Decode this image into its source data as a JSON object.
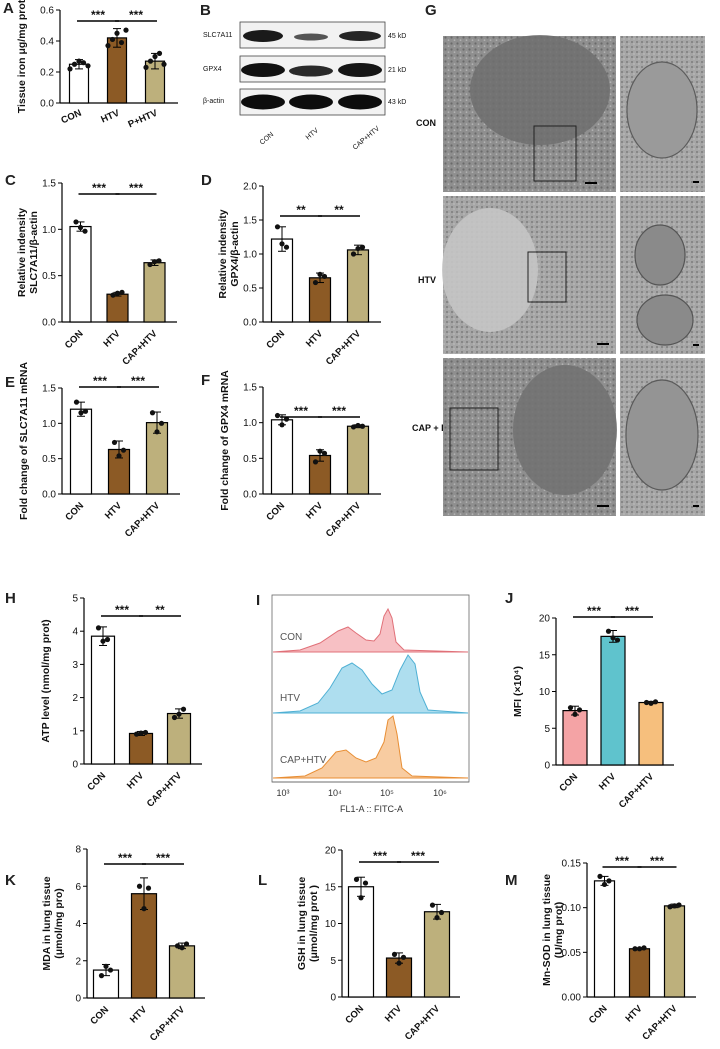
{
  "colors": {
    "con": "#ffffff",
    "htv": "#8c5a25",
    "cap_htv": "#bdb07c",
    "pink": "#f4a3a5",
    "teal": "#5fc3cd",
    "orange": "#f6bf7d",
    "flow_pink": "#f08d93",
    "flow_blue": "#6cc3e2",
    "flow_orange": "#f3a253"
  },
  "chart_data": [
    {
      "panel": "A",
      "type": "bar",
      "categories": [
        "CON",
        "HTV",
        "P+HTV"
      ],
      "values": [
        0.25,
        0.42,
        0.27
      ],
      "errors": [
        0.03,
        0.06,
        0.05
      ],
      "points": [
        [
          0.22,
          0.25,
          0.27,
          0.26,
          0.24
        ],
        [
          0.37,
          0.41,
          0.45,
          0.39,
          0.47
        ],
        [
          0.23,
          0.27,
          0.3,
          0.32,
          0.25
        ]
      ],
      "ylabel": "Tissue iron μg/mg prot",
      "ylim": [
        0,
        0.6
      ],
      "yticks": [
        "0.0",
        "0.2",
        "0.4",
        "0.6"
      ],
      "significance": [
        "***",
        "***"
      ]
    },
    {
      "panel": "C",
      "type": "bar",
      "categories": [
        "CON",
        "HTV",
        "CAP+HTV"
      ],
      "values": [
        1.03,
        0.3,
        0.64
      ],
      "errors": [
        0.05,
        0.02,
        0.03
      ],
      "points": [
        [
          1.08,
          1.02,
          0.98
        ],
        [
          0.29,
          0.31,
          0.32
        ],
        [
          0.62,
          0.65,
          0.66
        ]
      ],
      "ylabel": "Relative indensity SLC7A11/β-actin",
      "ylim": [
        0,
        1.5
      ],
      "yticks": [
        "0.0",
        "0.5",
        "1.0",
        "1.5"
      ],
      "significance": [
        "***",
        "***"
      ]
    },
    {
      "panel": "D",
      "type": "bar",
      "categories": [
        "CON",
        "HTV",
        "CAP+HTV"
      ],
      "values": [
        1.22,
        0.65,
        1.06
      ],
      "errors": [
        0.18,
        0.07,
        0.07
      ],
      "points": [
        [
          1.4,
          1.15,
          1.1
        ],
        [
          0.58,
          0.7,
          0.67
        ],
        [
          1.0,
          1.08,
          1.1
        ]
      ],
      "ylabel": "Relative indensity GPX4/β-actin",
      "ylim": [
        0,
        2.0
      ],
      "yticks": [
        "0.0",
        "0.5",
        "1.0",
        "1.5",
        "2.0"
      ],
      "significance": [
        "**",
        "**"
      ]
    },
    {
      "panel": "E",
      "type": "bar",
      "categories": [
        "CON",
        "HTV",
        "CAP+HTV"
      ],
      "values": [
        1.2,
        0.63,
        1.01
      ],
      "errors": [
        0.1,
        0.12,
        0.15
      ],
      "points": [
        [
          1.3,
          1.15,
          1.17
        ],
        [
          0.73,
          0.54,
          0.62
        ],
        [
          1.15,
          0.88,
          1.0
        ]
      ],
      "ylabel": "Fold change of SLC7A11 mRNA",
      "ylim": [
        0,
        1.5
      ],
      "yticks": [
        "0.0",
        "0.5",
        "1.0",
        "1.5"
      ],
      "significance": [
        "***",
        "***"
      ]
    },
    {
      "panel": "F",
      "type": "bar",
      "categories": [
        "CON",
        "HTV",
        "CAP+HTV"
      ],
      "values": [
        1.04,
        0.54,
        0.95
      ],
      "errors": [
        0.07,
        0.08,
        0.02
      ],
      "points": [
        [
          1.1,
          0.97,
          1.05
        ],
        [
          0.45,
          0.6,
          0.57
        ],
        [
          0.94,
          0.96,
          0.95
        ]
      ],
      "ylabel": "Fold change of GPX4 mRNA",
      "ylim": [
        0,
        1.5
      ],
      "yticks": [
        "0.0",
        "0.5",
        "1.0",
        "1.5"
      ],
      "significance": [
        "***",
        "***"
      ]
    },
    {
      "panel": "H",
      "type": "bar",
      "categories": [
        "CON",
        "HTV",
        "CAP+HTV"
      ],
      "values": [
        3.85,
        0.92,
        1.52
      ],
      "errors": [
        0.28,
        0.06,
        0.14
      ],
      "points": [
        [
          4.1,
          3.7,
          3.75
        ],
        [
          0.9,
          0.93,
          0.95
        ],
        [
          1.4,
          1.5,
          1.65
        ]
      ],
      "ylabel": "ATP level (nmol/mg prot)",
      "ylim": [
        0,
        5
      ],
      "yticks": [
        "0",
        "1",
        "2",
        "3",
        "4",
        "5"
      ],
      "significance": [
        "***",
        "**"
      ]
    },
    {
      "panel": "J",
      "type": "bar",
      "categories": [
        "CON",
        "HTV",
        "CAP+HTV"
      ],
      "values": [
        7.4,
        17.5,
        8.5
      ],
      "errors": [
        0.6,
        0.8,
        0.15
      ],
      "points": [
        [
          7.8,
          6.9,
          7.5
        ],
        [
          18.2,
          17.3,
          17.0
        ],
        [
          8.5,
          8.4,
          8.6
        ]
      ],
      "ylabel": "MFI (×10⁴)",
      "ylim": [
        0,
        20
      ],
      "yticks": [
        "0",
        "5",
        "10",
        "15",
        "20"
      ],
      "significance": [
        "***",
        "***"
      ]
    },
    {
      "panel": "K",
      "type": "bar",
      "categories": [
        "CON",
        "HTV",
        "CAP+HTV"
      ],
      "values": [
        1.5,
        5.6,
        2.8
      ],
      "errors": [
        0.3,
        0.85,
        0.15
      ],
      "points": [
        [
          1.2,
          1.7,
          1.5
        ],
        [
          6.0,
          4.8,
          5.9
        ],
        [
          2.8,
          2.7,
          2.9
        ]
      ],
      "ylabel": "MDA in lung tissue (μmol/mg pro)",
      "ylim": [
        0,
        8
      ],
      "yticks": [
        "0",
        "2",
        "4",
        "6",
        "8"
      ],
      "significance": [
        "***",
        "***"
      ]
    },
    {
      "panel": "L",
      "type": "bar",
      "categories": [
        "CON",
        "HTV",
        "CAP+HTV"
      ],
      "values": [
        15.0,
        5.3,
        11.6
      ],
      "errors": [
        1.3,
        0.7,
        1.0
      ],
      "points": [
        [
          16.0,
          13.5,
          15.5
        ],
        [
          5.8,
          4.6,
          5.4
        ],
        [
          12.5,
          10.8,
          11.5
        ]
      ],
      "ylabel": "GSH in lung tissue (μmol/mg prot )",
      "ylim": [
        0,
        20
      ],
      "yticks": [
        "0",
        "5",
        "10",
        "15",
        "20"
      ],
      "significance": [
        "***",
        "***"
      ]
    },
    {
      "panel": "M",
      "type": "bar",
      "categories": [
        "CON",
        "HTV",
        "CAP+HTV"
      ],
      "values": [
        0.13,
        0.054,
        0.102
      ],
      "errors": [
        0.005,
        0.001,
        0.002
      ],
      "points": [
        [
          0.135,
          0.126,
          0.13
        ],
        [
          0.054,
          0.054,
          0.055
        ],
        [
          0.101,
          0.102,
          0.103
        ]
      ],
      "ylabel": "Mn-SOD in lung tissue (U/mg prot)",
      "ylim": [
        0,
        0.15
      ],
      "yticks": [
        "0.00",
        "0.05",
        "0.10",
        "0.15"
      ],
      "significance": [
        "***",
        "***"
      ]
    }
  ],
  "panel_b": {
    "label": "B",
    "rows": [
      {
        "protein": "SLC7A11",
        "kd": "45 kD"
      },
      {
        "protein": "GPX4",
        "kd": "21 kD"
      },
      {
        "protein": "β-actin",
        "kd": "43 kD"
      }
    ],
    "lanes": [
      "CON",
      "HTV",
      "CAP+HTV"
    ]
  },
  "panel_g": {
    "label": "G",
    "rows": [
      "CON",
      "HTV",
      "CAP + HTV"
    ]
  },
  "panel_i": {
    "label": "I",
    "type": "histogram",
    "samples": [
      "CON",
      "HTV",
      "CAP+HTV"
    ],
    "xlabel": "FL1-A :: FITC-A",
    "xticks": [
      "10³",
      "10⁴",
      "10⁵",
      "10⁶"
    ]
  }
}
